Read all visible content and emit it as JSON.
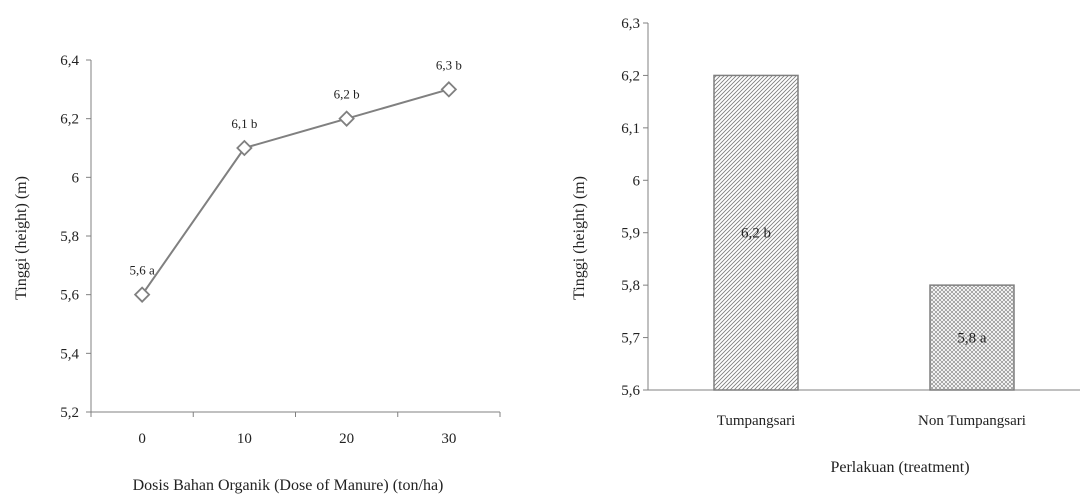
{
  "chart_data": [
    {
      "type": "line",
      "categories": [
        "0",
        "10",
        "20",
        "30"
      ],
      "series": [
        {
          "values": [
            5.6,
            6.1,
            6.2,
            6.3
          ],
          "labels": [
            "5,6 a",
            "6,1 b",
            "6,2 b",
            "6,3 b"
          ]
        }
      ],
      "yticks": [
        "5,2",
        "5,4",
        "5,6",
        "5,8",
        "6",
        "6,2",
        "6,4"
      ],
      "xlabel": "Dosis Bahan Organik (Dose of Manure) (ton/ha)",
      "ylabel": "Tinggi  (height) (m)",
      "ylim": [
        5.2,
        6.4
      ],
      "grid": false,
      "colors": {
        "line": "#808080",
        "marker_fill": "#ffffff"
      }
    },
    {
      "type": "bar",
      "categories": [
        "Tumpangsari",
        "Non Tumpangsari"
      ],
      "values": [
        6.2,
        5.8
      ],
      "labels": [
        "6,2 b",
        "5,8 a"
      ],
      "yticks": [
        "5,6",
        "5,7",
        "5,8",
        "5,9",
        "6",
        "6,1",
        "6,2",
        "6,3"
      ],
      "xlabel": "Perlakuan (treatment)",
      "ylabel": "Tinggi  (height) (m)",
      "ylim": [
        5.6,
        6.3
      ],
      "grid": false,
      "fill_patterns": [
        "diagonal-hatch",
        "cross-hatch"
      ],
      "colors": {
        "bar_stroke": "#7f7f7f",
        "axis": "#7f7f7f"
      }
    }
  ]
}
